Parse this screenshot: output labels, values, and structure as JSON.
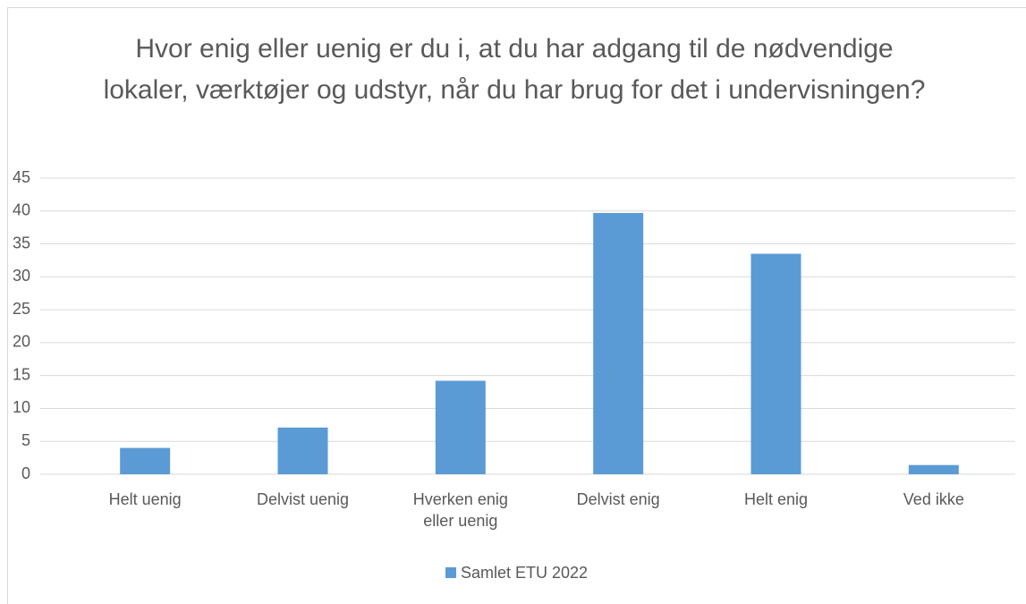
{
  "chart_data": {
    "type": "bar",
    "title": "Hvor enig eller uenig er du i, at du har adgang til de nødvendige lokaler, værktøjer og udstyr, når du har brug for det i undervisningen?",
    "categories": [
      "Helt uenig",
      "Delvist uenig",
      "Hverken enig eller uenig",
      "Delvist enig",
      "Helt enig",
      "Ved ikke"
    ],
    "series": [
      {
        "name": "Samlet ETU 2022",
        "color": "#5b9bd5",
        "values": [
          4.0,
          7.1,
          14.2,
          39.7,
          33.5,
          1.4
        ]
      }
    ],
    "ylim": [
      0,
      45
    ],
    "yticks": [
      0,
      5,
      10,
      15,
      20,
      25,
      30,
      35,
      40,
      45
    ],
    "grid": true,
    "legend": "bottom"
  }
}
